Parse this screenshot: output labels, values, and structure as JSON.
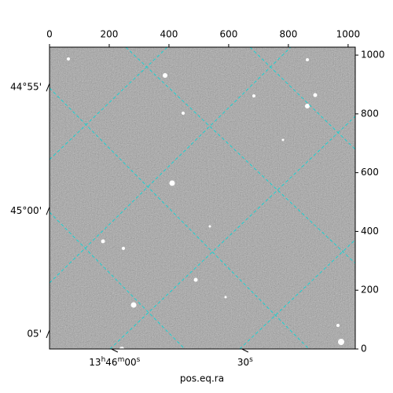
{
  "chart_data": {
    "type": "image",
    "xlabel": "pos.eq.ra",
    "xlim": [
      0,
      1024
    ],
    "xticks": [
      0,
      200,
      400,
      600,
      800,
      1000
    ],
    "ylim": [
      0,
      1027
    ],
    "yticks": [
      0,
      200,
      400,
      600,
      800,
      1000
    ],
    "ra_ticks": [
      {
        "value": 218,
        "label": "13h46m00s"
      },
      {
        "value": 655,
        "label": "30s"
      }
    ],
    "dec_ticks": [
      {
        "value": 890,
        "label": "44°55'"
      },
      {
        "value": 470,
        "label": "45°00'"
      },
      {
        "value": 51,
        "label": "05'"
      }
    ]
  }
}
